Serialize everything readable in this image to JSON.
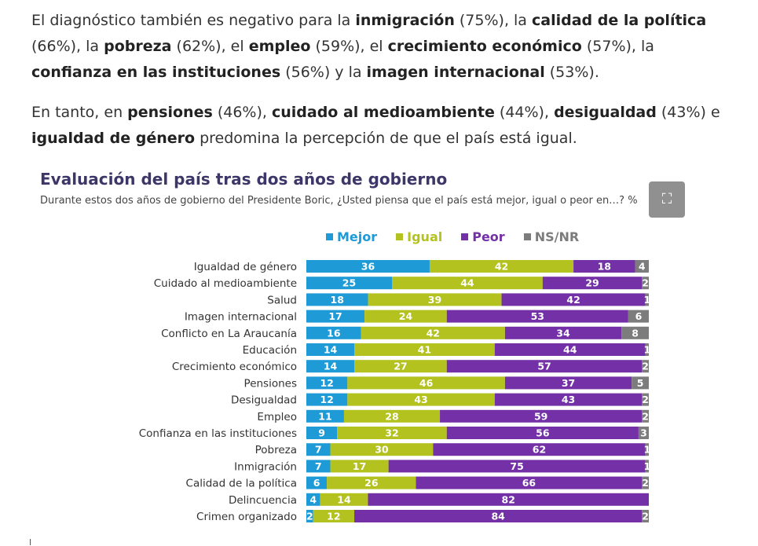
{
  "article": {
    "p1": [
      {
        "t": "El diagnóstico también es negativo para la ",
        "b": false
      },
      {
        "t": "inmigración",
        "b": true
      },
      {
        "t": " (75%), la ",
        "b": false
      },
      {
        "t": "calidad de la política",
        "b": true
      },
      {
        "t": " (66%), la ",
        "b": false
      },
      {
        "t": "pobreza",
        "b": true
      },
      {
        "t": " (62%), el ",
        "b": false
      },
      {
        "t": "empleo",
        "b": true
      },
      {
        "t": " (59%), el ",
        "b": false
      },
      {
        "t": "crecimiento económico",
        "b": true
      },
      {
        "t": " (57%), la ",
        "b": false
      },
      {
        "t": "confianza en las instituciones",
        "b": true
      },
      {
        "t": " (56%) y la ",
        "b": false
      },
      {
        "t": "imagen internacional",
        "b": true
      },
      {
        "t": " (53%).",
        "b": false
      }
    ],
    "p2": [
      {
        "t": "En tanto, en ",
        "b": false
      },
      {
        "t": "pensiones",
        "b": true
      },
      {
        "t": " (46%), ",
        "b": false
      },
      {
        "t": "cuidado al medioambiente",
        "b": true
      },
      {
        "t": " (44%), ",
        "b": false
      },
      {
        "t": "desigualdad",
        "b": true
      },
      {
        "t": " (43%) e ",
        "b": false
      },
      {
        "t": "igualdad de género",
        "b": true
      },
      {
        "t": " predomina la percepción de que el país está igual.",
        "b": false
      }
    ]
  },
  "expand_icon": "expand-icon",
  "colors": {
    "Mejor": "#1e9bd7",
    "Igual": "#b3c21e",
    "Peor": "#7430a6",
    "NS/NR": "#7c7c7c",
    "title": "#3d3668"
  },
  "chart_data": {
    "type": "bar",
    "orientation": "horizontal",
    "stacked": true,
    "title": "Evaluación del país tras dos años de gobierno",
    "subtitle": "Durante estos dos años de gobierno del Presidente Boric, ¿Usted piensa que el país está mejor, igual o peor en…? %",
    "legend_position": "top",
    "xlim": [
      0,
      100
    ],
    "categories": [
      "Igualdad de género",
      "Cuidado al medioambiente",
      "Salud",
      "Imagen internacional",
      "Conflicto en La Araucanía",
      "Educación",
      "Crecimiento económico",
      "Pensiones",
      "Desigualdad",
      "Empleo",
      "Confianza en las instituciones",
      "Pobreza",
      "Inmigración",
      "Calidad de la política",
      "Delincuencia",
      "Crimen organizado"
    ],
    "series": [
      {
        "name": "Mejor",
        "values": [
          36,
          25,
          18,
          17,
          16,
          14,
          14,
          12,
          12,
          11,
          9,
          7,
          7,
          6,
          4,
          2
        ]
      },
      {
        "name": "Igual",
        "values": [
          42,
          44,
          39,
          24,
          42,
          41,
          27,
          46,
          43,
          28,
          32,
          30,
          17,
          26,
          14,
          12
        ]
      },
      {
        "name": "Peor",
        "values": [
          18,
          29,
          42,
          53,
          34,
          44,
          57,
          37,
          43,
          59,
          56,
          62,
          75,
          66,
          82,
          84
        ]
      },
      {
        "name": "NS/NR",
        "values": [
          4,
          2,
          1,
          6,
          8,
          1,
          2,
          5,
          2,
          2,
          3,
          1,
          1,
          2,
          0,
          2
        ]
      }
    ]
  }
}
